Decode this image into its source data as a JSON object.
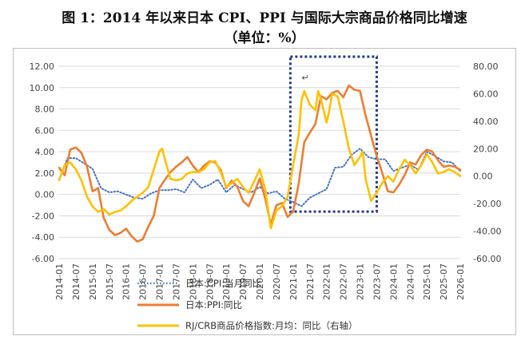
{
  "title_line1": "图 1：2014 年以来日本 CPI、PPI 与国际大宗商品价格同比增速",
  "title_line2": "（单位：%）",
  "chart_data": {
    "type": "line",
    "left_axis": {
      "ylim": [
        -6,
        12
      ],
      "ticks": [
        "12.00",
        "10.00",
        "8.00",
        "6.00",
        "4.00",
        "2.00",
        "0.00",
        "-2.00",
        "-4.00",
        "-6.00"
      ]
    },
    "right_axis": {
      "ylim": [
        -60,
        80
      ],
      "ticks": [
        "80.00",
        "60.00",
        "40.00",
        "20.00",
        "0.00",
        "-20.00",
        "-40.00",
        "-60.00"
      ]
    },
    "x_ticks": [
      "2014-01",
      "2014-07",
      "2015-01",
      "2015-07",
      "2016-01",
      "2016-07",
      "2017-01",
      "2017-07",
      "2018-01",
      "2018-07",
      "2019-01",
      "2019-07",
      "2020-01",
      "2020-07",
      "2021-01",
      "2021-07",
      "2022-01",
      "2022-07",
      "2023-01",
      "2023-07",
      "2024-01",
      "2024-07",
      "2025-01",
      "2025-07",
      "2026-01"
    ],
    "series": [
      {
        "name": "日本:CPI:当月同比",
        "axis": "left",
        "color": "#4472c4",
        "style": "dotted",
        "points": [
          [
            "2014-01",
            1.4
          ],
          [
            "2014-04",
            3.4
          ],
          [
            "2014-07",
            3.4
          ],
          [
            "2014-10",
            2.9
          ],
          [
            "2015-01",
            2.4
          ],
          [
            "2015-04",
            0.6
          ],
          [
            "2015-07",
            0.2
          ],
          [
            "2015-10",
            0.3
          ],
          [
            "2016-01",
            0.0
          ],
          [
            "2016-04",
            -0.3
          ],
          [
            "2016-07",
            -0.4
          ],
          [
            "2016-10",
            0.1
          ],
          [
            "2017-01",
            0.4
          ],
          [
            "2017-04",
            0.4
          ],
          [
            "2017-07",
            0.5
          ],
          [
            "2017-10",
            0.2
          ],
          [
            "2018-01",
            1.4
          ],
          [
            "2018-04",
            0.6
          ],
          [
            "2018-07",
            0.9
          ],
          [
            "2018-10",
            1.4
          ],
          [
            "2019-01",
            0.2
          ],
          [
            "2019-04",
            0.9
          ],
          [
            "2019-07",
            0.5
          ],
          [
            "2019-10",
            0.2
          ],
          [
            "2020-01",
            0.7
          ],
          [
            "2020-04",
            0.1
          ],
          [
            "2020-07",
            0.3
          ],
          [
            "2020-10",
            -0.4
          ],
          [
            "2021-01",
            -0.7
          ],
          [
            "2021-04",
            -1.1
          ],
          [
            "2021-07",
            -0.3
          ],
          [
            "2021-10",
            0.1
          ],
          [
            "2022-01",
            0.5
          ],
          [
            "2022-04",
            2.5
          ],
          [
            "2022-07",
            2.6
          ],
          [
            "2022-10",
            3.7
          ],
          [
            "2023-01",
            4.3
          ],
          [
            "2023-04",
            3.5
          ],
          [
            "2023-07",
            3.3
          ],
          [
            "2023-10",
            3.3
          ],
          [
            "2024-01",
            2.2
          ],
          [
            "2024-04",
            2.5
          ],
          [
            "2024-07",
            2.8
          ],
          [
            "2024-10",
            2.3
          ],
          [
            "2025-01",
            4.0
          ],
          [
            "2025-04",
            3.6
          ],
          [
            "2025-07",
            3.1
          ],
          [
            "2025-10",
            3.0
          ],
          [
            "2026-01",
            2.2
          ]
        ]
      },
      {
        "name": "日本:PPI:同比",
        "axis": "left",
        "color": "#ed7d31",
        "style": "solid",
        "points": [
          [
            "2014-01",
            2.5
          ],
          [
            "2014-03",
            1.8
          ],
          [
            "2014-05",
            4.2
          ],
          [
            "2014-07",
            4.4
          ],
          [
            "2014-09",
            3.9
          ],
          [
            "2014-11",
            2.6
          ],
          [
            "2015-01",
            0.3
          ],
          [
            "2015-03",
            0.6
          ],
          [
            "2015-05",
            -2.2
          ],
          [
            "2015-07",
            -3.3
          ],
          [
            "2015-09",
            -3.8
          ],
          [
            "2015-11",
            -3.6
          ],
          [
            "2016-01",
            -3.2
          ],
          [
            "2016-03",
            -3.9
          ],
          [
            "2016-05",
            -4.4
          ],
          [
            "2016-07",
            -4.2
          ],
          [
            "2016-09",
            -3.0
          ],
          [
            "2016-11",
            -2.0
          ],
          [
            "2017-01",
            0.6
          ],
          [
            "2017-03",
            1.4
          ],
          [
            "2017-05",
            2.1
          ],
          [
            "2017-07",
            2.6
          ],
          [
            "2017-09",
            3.0
          ],
          [
            "2017-11",
            3.5
          ],
          [
            "2018-01",
            2.7
          ],
          [
            "2018-03",
            2.1
          ],
          [
            "2018-05",
            2.7
          ],
          [
            "2018-07",
            3.1
          ],
          [
            "2018-09",
            3.0
          ],
          [
            "2018-11",
            2.3
          ],
          [
            "2019-01",
            0.6
          ],
          [
            "2019-03",
            1.3
          ],
          [
            "2019-05",
            0.7
          ],
          [
            "2019-07",
            -0.6
          ],
          [
            "2019-09",
            -1.1
          ],
          [
            "2019-11",
            0.1
          ],
          [
            "2020-01",
            1.5
          ],
          [
            "2020-03",
            -0.4
          ],
          [
            "2020-05",
            -2.8
          ],
          [
            "2020-07",
            -1.0
          ],
          [
            "2020-09",
            -0.8
          ],
          [
            "2020-11",
            -2.1
          ],
          [
            "2021-01",
            -1.6
          ],
          [
            "2021-03",
            1.0
          ],
          [
            "2021-05",
            4.9
          ],
          [
            "2021-07",
            5.8
          ],
          [
            "2021-09",
            6.6
          ],
          [
            "2021-11",
            9.2
          ],
          [
            "2022-01",
            8.9
          ],
          [
            "2022-03",
            9.5
          ],
          [
            "2022-05",
            9.7
          ],
          [
            "2022-07",
            9.1
          ],
          [
            "2022-09",
            10.2
          ],
          [
            "2022-11",
            9.8
          ],
          [
            "2023-01",
            9.7
          ],
          [
            "2023-03",
            7.4
          ],
          [
            "2023-05",
            5.5
          ],
          [
            "2023-07",
            3.6
          ],
          [
            "2023-09",
            2.0
          ],
          [
            "2023-11",
            0.3
          ],
          [
            "2024-01",
            0.2
          ],
          [
            "2024-03",
            0.9
          ],
          [
            "2024-05",
            1.8
          ],
          [
            "2024-07",
            3.0
          ],
          [
            "2024-09",
            2.8
          ],
          [
            "2024-11",
            3.7
          ],
          [
            "2025-01",
            4.2
          ],
          [
            "2025-03",
            4.0
          ],
          [
            "2025-05",
            3.2
          ],
          [
            "2025-07",
            2.6
          ],
          [
            "2025-09",
            2.7
          ],
          [
            "2025-11",
            2.6
          ],
          [
            "2026-01",
            2.3
          ]
        ]
      },
      {
        "name": "RJ/CRB商品价格指数:月均：同比（右轴）",
        "axis": "right",
        "color": "#ffc000",
        "style": "solid",
        "points": [
          [
            "2014-01",
            -3
          ],
          [
            "2014-03",
            8
          ],
          [
            "2014-05",
            10
          ],
          [
            "2014-07",
            5
          ],
          [
            "2014-09",
            -3
          ],
          [
            "2014-11",
            -15
          ],
          [
            "2015-01",
            -22
          ],
          [
            "2015-03",
            -26
          ],
          [
            "2015-05",
            -24
          ],
          [
            "2015-07",
            -28
          ],
          [
            "2015-09",
            -26
          ],
          [
            "2015-11",
            -25
          ],
          [
            "2016-01",
            -22
          ],
          [
            "2016-03",
            -18
          ],
          [
            "2016-05",
            -15
          ],
          [
            "2016-07",
            -12
          ],
          [
            "2016-09",
            -8
          ],
          [
            "2016-11",
            5
          ],
          [
            "2017-01",
            18
          ],
          [
            "2017-02",
            20
          ],
          [
            "2017-03",
            12
          ],
          [
            "2017-05",
            -2
          ],
          [
            "2017-07",
            -3
          ],
          [
            "2017-09",
            -2
          ],
          [
            "2017-11",
            2
          ],
          [
            "2018-01",
            3
          ],
          [
            "2018-03",
            3
          ],
          [
            "2018-05",
            5
          ],
          [
            "2018-07",
            10
          ],
          [
            "2018-09",
            11
          ],
          [
            "2018-11",
            3
          ],
          [
            "2019-01",
            -8
          ],
          [
            "2019-03",
            -5
          ],
          [
            "2019-05",
            -2
          ],
          [
            "2019-07",
            -8
          ],
          [
            "2019-09",
            -12
          ],
          [
            "2019-11",
            -4
          ],
          [
            "2020-01",
            5
          ],
          [
            "2020-03",
            -10
          ],
          [
            "2020-05",
            -38
          ],
          [
            "2020-07",
            -25
          ],
          [
            "2020-09",
            -22
          ],
          [
            "2020-11",
            -15
          ],
          [
            "2021-01",
            8
          ],
          [
            "2021-03",
            30
          ],
          [
            "2021-04",
            55
          ],
          [
            "2021-05",
            62
          ],
          [
            "2021-07",
            52
          ],
          [
            "2021-09",
            48
          ],
          [
            "2021-10",
            62
          ],
          [
            "2021-11",
            56
          ],
          [
            "2022-01",
            39
          ],
          [
            "2022-02",
            48
          ],
          [
            "2022-03",
            60
          ],
          [
            "2022-05",
            58
          ],
          [
            "2022-07",
            40
          ],
          [
            "2022-09",
            20
          ],
          [
            "2022-11",
            8
          ],
          [
            "2023-01",
            14
          ],
          [
            "2023-02",
            18
          ],
          [
            "2023-03",
            -2
          ],
          [
            "2023-05",
            -18
          ],
          [
            "2023-07",
            -12
          ],
          [
            "2023-09",
            -5
          ],
          [
            "2023-11",
            0
          ],
          [
            "2024-01",
            -4
          ],
          [
            "2024-03",
            5
          ],
          [
            "2024-05",
            12
          ],
          [
            "2024-07",
            8
          ],
          [
            "2024-09",
            2
          ],
          [
            "2024-11",
            8
          ],
          [
            "2025-01",
            16
          ],
          [
            "2025-03",
            10
          ],
          [
            "2025-05",
            2
          ],
          [
            "2025-07",
            3
          ],
          [
            "2025-09",
            5
          ],
          [
            "2025-11",
            3
          ],
          [
            "2026-01",
            0
          ]
        ]
      }
    ],
    "legend_placement": "bottom",
    "annotation": {
      "type": "dotted-rectangle",
      "color": "#1f3b8a",
      "from": "2020-12",
      "to": "2023-07"
    }
  }
}
